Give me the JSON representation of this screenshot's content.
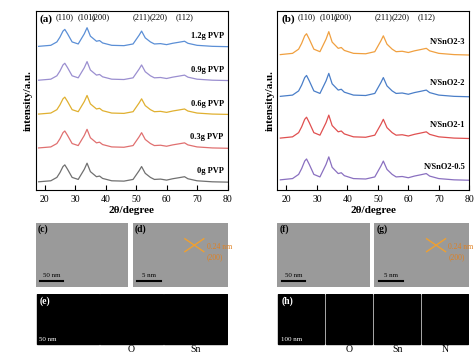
{
  "chart_data": [
    {
      "type": "line",
      "panel": "(a)",
      "xlabel": "2θ/degree",
      "ylabel": "intensity/a.u.",
      "xlim": [
        17,
        80
      ],
      "xticks": [
        20,
        30,
        40,
        50,
        60,
        70,
        80
      ],
      "ylim": [
        0,
        5.3
      ],
      "tick_labels": "x",
      "annotations": [
        {
          "text": "(110)",
          "x": 26.6
        },
        {
          "text": "(101)",
          "x": 33.9
        },
        {
          "text": "(200)",
          "x": 38.5
        },
        {
          "text": "(211)",
          "x": 51.8
        },
        {
          "text": "(220)",
          "x": 57.5
        },
        {
          "text": "(112)",
          "x": 65.9
        }
      ],
      "x": [
        18,
        22,
        24,
        25,
        26,
        26.6,
        27.5,
        29,
        31,
        33,
        33.9,
        35,
        37,
        38,
        39,
        42,
        46,
        49,
        51,
        51.8,
        53,
        54.7,
        56,
        58,
        60,
        62,
        64,
        65.9,
        67,
        70,
        75,
        80
      ],
      "series": [
        {
          "name": "0g PVP",
          "color": "#707070",
          "values": [
            0.25,
            0.28,
            0.38,
            0.52,
            0.7,
            0.75,
            0.62,
            0.38,
            0.32,
            0.62,
            0.8,
            0.55,
            0.4,
            0.42,
            0.35,
            0.28,
            0.27,
            0.32,
            0.58,
            0.7,
            0.5,
            0.38,
            0.32,
            0.33,
            0.3,
            0.34,
            0.37,
            0.4,
            0.34,
            0.28,
            0.25,
            0.24
          ]
        },
        {
          "name": "0.3g PVP",
          "color": "#e07070",
          "values": [
            1.25,
            1.28,
            1.38,
            1.52,
            1.7,
            1.75,
            1.62,
            1.38,
            1.32,
            1.62,
            1.8,
            1.55,
            1.4,
            1.42,
            1.35,
            1.28,
            1.27,
            1.32,
            1.58,
            1.7,
            1.5,
            1.38,
            1.32,
            1.33,
            1.3,
            1.34,
            1.37,
            1.4,
            1.34,
            1.28,
            1.25,
            1.24
          ]
        },
        {
          "name": "0.6g PVP",
          "color": "#e0b030",
          "values": [
            2.25,
            2.28,
            2.38,
            2.52,
            2.7,
            2.75,
            2.62,
            2.38,
            2.32,
            2.62,
            2.8,
            2.55,
            2.4,
            2.42,
            2.35,
            2.28,
            2.27,
            2.32,
            2.58,
            2.7,
            2.5,
            2.38,
            2.32,
            2.33,
            2.3,
            2.34,
            2.37,
            2.4,
            2.34,
            2.28,
            2.25,
            2.24
          ]
        },
        {
          "name": "0.9g PVP",
          "color": "#9b8fd0",
          "values": [
            3.25,
            3.28,
            3.38,
            3.52,
            3.7,
            3.75,
            3.62,
            3.38,
            3.32,
            3.62,
            3.8,
            3.55,
            3.4,
            3.42,
            3.35,
            3.28,
            3.27,
            3.32,
            3.58,
            3.7,
            3.5,
            3.38,
            3.32,
            3.33,
            3.3,
            3.34,
            3.37,
            3.4,
            3.34,
            3.28,
            3.25,
            3.24
          ]
        },
        {
          "name": "1.2g PVP",
          "color": "#5b8fd6",
          "values": [
            4.25,
            4.28,
            4.38,
            4.52,
            4.7,
            4.75,
            4.62,
            4.38,
            4.32,
            4.62,
            4.8,
            4.55,
            4.4,
            4.42,
            4.35,
            4.28,
            4.27,
            4.32,
            4.58,
            4.7,
            4.5,
            4.38,
            4.32,
            4.33,
            4.3,
            4.34,
            4.37,
            4.4,
            4.34,
            4.28,
            4.25,
            4.24
          ]
        }
      ]
    },
    {
      "type": "line",
      "panel": "(b)",
      "xlabel": "2θ/degree",
      "ylabel": "intensity/a.u.",
      "xlim": [
        17,
        80
      ],
      "xticks": [
        20,
        30,
        40,
        50,
        60,
        70,
        80
      ],
      "ylim": [
        0,
        4.3
      ],
      "tick_labels": "x",
      "annotations": [
        {
          "text": "(110)",
          "x": 26.6
        },
        {
          "text": "(101)",
          "x": 33.9
        },
        {
          "text": "(200)",
          "x": 38.5
        },
        {
          "text": "(211)",
          "x": 51.8
        },
        {
          "text": "(220)",
          "x": 57.5
        },
        {
          "text": "(112)",
          "x": 65.9
        }
      ],
      "x": [
        18,
        22,
        24,
        25,
        26,
        26.6,
        27.5,
        29,
        31,
        33,
        33.9,
        35,
        37,
        38,
        39,
        42,
        46,
        49,
        51,
        51.8,
        53,
        54.7,
        56,
        58,
        60,
        62,
        64,
        65.9,
        67,
        70,
        75,
        80
      ],
      "series": [
        {
          "name": "N/SnO2-0.5",
          "color": "#8a70c0",
          "values": [
            0.25,
            0.28,
            0.38,
            0.52,
            0.7,
            0.75,
            0.62,
            0.38,
            0.32,
            0.62,
            0.8,
            0.55,
            0.4,
            0.42,
            0.35,
            0.28,
            0.27,
            0.32,
            0.58,
            0.7,
            0.5,
            0.38,
            0.32,
            0.33,
            0.3,
            0.34,
            0.37,
            0.4,
            0.34,
            0.28,
            0.25,
            0.24
          ]
        },
        {
          "name": "N/SnO2-1",
          "color": "#e05050",
          "values": [
            1.25,
            1.28,
            1.38,
            1.52,
            1.7,
            1.75,
            1.62,
            1.38,
            1.32,
            1.62,
            1.8,
            1.55,
            1.4,
            1.42,
            1.35,
            1.28,
            1.27,
            1.32,
            1.58,
            1.7,
            1.5,
            1.38,
            1.32,
            1.33,
            1.3,
            1.34,
            1.37,
            1.4,
            1.34,
            1.28,
            1.25,
            1.24
          ]
        },
        {
          "name": "N/SnO2-2",
          "color": "#4a7ec8",
          "values": [
            2.25,
            2.28,
            2.38,
            2.52,
            2.7,
            2.75,
            2.62,
            2.38,
            2.32,
            2.62,
            2.8,
            2.55,
            2.4,
            2.42,
            2.35,
            2.28,
            2.27,
            2.32,
            2.58,
            2.7,
            2.5,
            2.38,
            2.32,
            2.33,
            2.3,
            2.34,
            2.37,
            2.4,
            2.34,
            2.28,
            2.25,
            2.24
          ]
        },
        {
          "name": "N/SnO2-3",
          "color": "#f0a040",
          "values": [
            3.25,
            3.28,
            3.38,
            3.52,
            3.7,
            3.75,
            3.62,
            3.38,
            3.32,
            3.62,
            3.8,
            3.55,
            3.4,
            3.42,
            3.35,
            3.28,
            3.27,
            3.32,
            3.58,
            3.7,
            3.5,
            3.38,
            3.32,
            3.33,
            3.3,
            3.34,
            3.37,
            3.4,
            3.34,
            3.28,
            3.25,
            3.24
          ]
        }
      ]
    }
  ],
  "images": [
    {
      "panel": "(c)",
      "scale_bar": "50 nm"
    },
    {
      "panel": "(d)",
      "scale_bar": "5 nm",
      "lattice": {
        "spacing": "0.24 nm",
        "plane": "(200)"
      }
    },
    {
      "panel": "(e)",
      "scale_bar": "50 nm",
      "maps": [
        "O",
        "Sn"
      ]
    },
    {
      "panel": "(f)",
      "scale_bar": "50 nm"
    },
    {
      "panel": "(g)",
      "scale_bar": "5 nm",
      "lattice": {
        "spacing": "0.24 nm",
        "plane": "(200)"
      }
    },
    {
      "panel": "(h)",
      "scale_bar": "100 nm",
      "maps": [
        "O",
        "Sn",
        "N"
      ]
    }
  ]
}
